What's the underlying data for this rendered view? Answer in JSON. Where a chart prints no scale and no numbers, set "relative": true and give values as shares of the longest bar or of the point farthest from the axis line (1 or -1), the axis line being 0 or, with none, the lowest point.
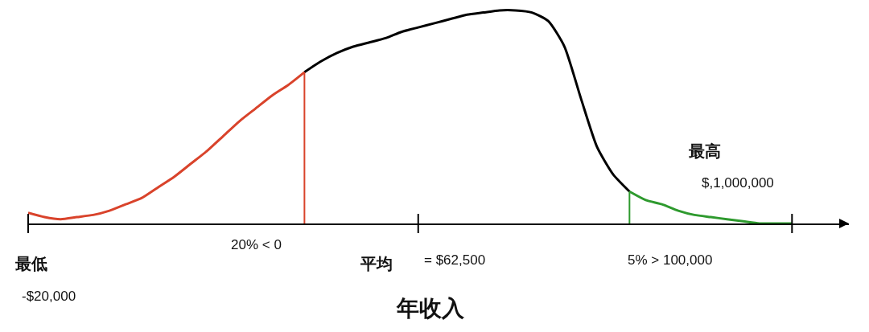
{
  "chart_data": {
    "type": "line",
    "relative": true,
    "xlabel": "年收入",
    "categories": [
      null,
      null,
      null,
      null,
      null,
      null,
      null,
      null,
      null,
      null,
      null,
      null,
      null,
      null,
      null,
      null,
      null,
      null,
      null,
      null,
      null,
      null,
      null,
      null,
      null,
      null,
      null,
      null,
      null,
      null,
      null,
      null,
      null,
      null,
      null,
      null,
      null,
      null,
      null,
      null,
      null,
      null,
      null,
      null,
      null,
      null,
      null,
      null
    ],
    "series": [
      {
        "color": "#d9432b",
        "values": [
          0.05,
          0.03,
          0.02,
          0.03,
          0.04,
          0.06,
          0.09,
          0.12,
          0.17,
          0.22,
          0.28,
          0.34,
          0.41,
          0.48,
          0.54,
          0.6,
          0.65,
          0.71,
          null,
          null,
          null,
          null,
          null,
          null,
          null,
          null,
          null,
          null,
          null,
          null,
          null,
          null,
          null,
          null,
          null,
          null,
          null,
          null,
          null,
          null,
          null,
          null,
          null,
          null,
          null,
          null,
          null,
          null
        ]
      },
      {
        "color": "#000000",
        "values": [
          null,
          null,
          null,
          null,
          null,
          null,
          null,
          null,
          null,
          null,
          null,
          null,
          null,
          null,
          null,
          null,
          null,
          0.71,
          0.76,
          0.8,
          0.83,
          0.85,
          0.87,
          0.9,
          0.92,
          0.94,
          0.96,
          0.98,
          0.99,
          1,
          1,
          0.99,
          0.95,
          0.83,
          0.59,
          0.36,
          0.23,
          0.15,
          null,
          null,
          null,
          null,
          null,
          null,
          null,
          null,
          null,
          null
        ]
      },
      {
        "color": "#2e9a2e",
        "values": [
          null,
          null,
          null,
          null,
          null,
          null,
          null,
          null,
          null,
          null,
          null,
          null,
          null,
          null,
          null,
          null,
          null,
          null,
          null,
          null,
          null,
          null,
          null,
          null,
          null,
          null,
          null,
          null,
          null,
          null,
          null,
          null,
          null,
          null,
          null,
          null,
          null,
          0.15,
          0.11,
          0.09,
          0.06,
          0.04,
          0.03,
          0.02,
          0.01,
          0,
          0,
          0
        ]
      }
    ],
    "annotations": [
      "最低",
      "-$20,000",
      "20% < 0",
      "平均",
      "= $62,500",
      "5% > 100,000",
      "最高",
      "$,1,000,000"
    ]
  }
}
